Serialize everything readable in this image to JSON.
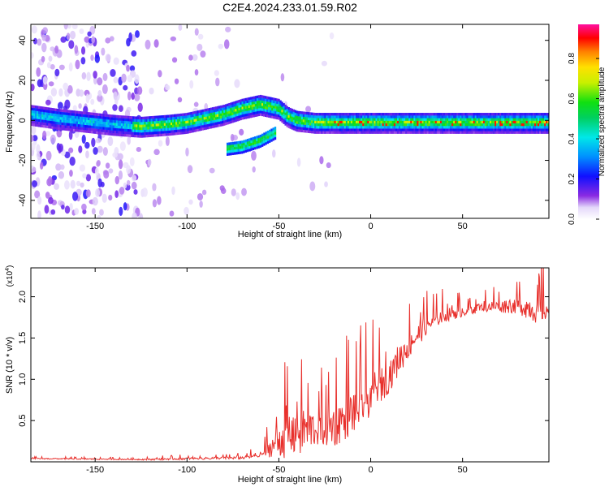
{
  "title": "C2E4.2024.233.01.59.R02",
  "chart_data": [
    {
      "type": "heatmap",
      "xlabel": "Height of straight line (km)",
      "ylabel": "Frequency (Hz)",
      "xlim": [
        -185,
        97
      ],
      "ylim": [
        -49,
        48
      ],
      "xticks": [
        -150,
        -100,
        -50,
        0,
        50
      ],
      "yticks": [
        -40,
        -20,
        0,
        20,
        40
      ],
      "colorbar": {
        "label": "Normalized spectral amplitude",
        "range": [
          0.0,
          0.97
        ],
        "ticks": [
          0.0,
          0.2,
          0.4,
          0.6,
          0.8
        ]
      },
      "ridge": [
        {
          "x": -185,
          "y": 3
        },
        {
          "x": -170,
          "y": 1
        },
        {
          "x": -160,
          "y": 0
        },
        {
          "x": -140,
          "y": -2
        },
        {
          "x": -125,
          "y": -3
        },
        {
          "x": -110,
          "y": -2
        },
        {
          "x": -100,
          "y": -1
        },
        {
          "x": -90,
          "y": 1
        },
        {
          "x": -80,
          "y": 3
        },
        {
          "x": -70,
          "y": 6
        },
        {
          "x": -60,
          "y": 8
        },
        {
          "x": -50,
          "y": 6
        },
        {
          "x": -45,
          "y": 2
        },
        {
          "x": -40,
          "y": 0
        },
        {
          "x": -30,
          "y": -1
        },
        {
          "x": -20,
          "y": -1
        },
        {
          "x": 0,
          "y": -1
        },
        {
          "x": 20,
          "y": -1
        },
        {
          "x": 50,
          "y": -1
        },
        {
          "x": 95,
          "y": -1
        }
      ],
      "side_branch": [
        {
          "x": -78,
          "y": -14
        },
        {
          "x": -70,
          "y": -13
        },
        {
          "x": -60,
          "y": -10
        },
        {
          "x": -52,
          "y": -6
        }
      ]
    },
    {
      "type": "line",
      "xlabel": "Height of straight line (km)",
      "ylabel": "SNR (10 * v/v)",
      "scale_label": "(x10",
      "scale_exp": "4",
      "xlim": [
        -185,
        97
      ],
      "ylim": [
        0,
        2.35
      ],
      "xticks": [
        -150,
        -100,
        -50,
        0,
        50
      ],
      "yticks": [
        0.5,
        1.0,
        1.5,
        2.0
      ],
      "ytick_labels": [
        "0.5",
        "1.0",
        "1.5",
        "2.0"
      ],
      "color": "#e8302c",
      "envelope": [
        {
          "x": -185,
          "base": 0.04,
          "amp": 0.02
        },
        {
          "x": -130,
          "base": 0.03,
          "amp": 0.02
        },
        {
          "x": -120,
          "base": 0.03,
          "amp": 0.03
        },
        {
          "x": -100,
          "base": 0.04,
          "amp": 0.04
        },
        {
          "x": -70,
          "base": 0.05,
          "amp": 0.05
        },
        {
          "x": -60,
          "base": 0.08,
          "amp": 0.1
        },
        {
          "x": -53,
          "base": 0.2,
          "amp": 0.4
        },
        {
          "x": -45,
          "base": 0.35,
          "amp": 0.9
        },
        {
          "x": -38,
          "base": 0.4,
          "amp": 1.0
        },
        {
          "x": -30,
          "base": 0.4,
          "amp": 0.6
        },
        {
          "x": -20,
          "base": 0.45,
          "amp": 0.8
        },
        {
          "x": -10,
          "base": 0.6,
          "amp": 0.8
        },
        {
          "x": 0,
          "base": 0.8,
          "amp": 0.7
        },
        {
          "x": 10,
          "base": 1.05,
          "amp": 0.6
        },
        {
          "x": 20,
          "base": 1.4,
          "amp": 0.5
        },
        {
          "x": 30,
          "base": 1.65,
          "amp": 0.35
        },
        {
          "x": 40,
          "base": 1.78,
          "amp": 0.25
        },
        {
          "x": 60,
          "base": 1.88,
          "amp": 0.18
        },
        {
          "x": 80,
          "base": 1.9,
          "amp": 0.3
        },
        {
          "x": 90,
          "base": 1.85,
          "amp": 0.5
        },
        {
          "x": 97,
          "base": 1.85,
          "amp": 0.4
        }
      ]
    }
  ]
}
